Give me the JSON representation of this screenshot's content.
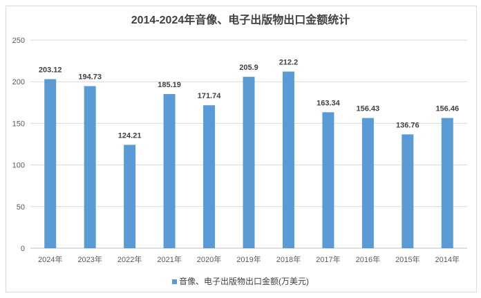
{
  "chart_data": {
    "type": "bar",
    "title": "2014-2024年音像、电子出版物出口金额统计",
    "categories": [
      "2024年",
      "2023年",
      "2022年",
      "2021年",
      "2020年",
      "2019年",
      "2018年",
      "2017年",
      "2016年",
      "2015年",
      "2014年"
    ],
    "series": [
      {
        "name": "音像、电子出版物出口金额(万美元)",
        "values": [
          203.12,
          194.73,
          124.21,
          185.19,
          171.74,
          205.9,
          212.2,
          163.34,
          156.43,
          136.76,
          156.46
        ]
      }
    ],
    "data_labels": [
      "203.12",
      "194.73",
      "124.21",
      "185.19",
      "171.74",
      "205.9",
      "212.2",
      "163.34",
      "156.43",
      "136.76",
      "156.46"
    ],
    "ylim": [
      0,
      250
    ],
    "yticks": [
      0,
      50,
      100,
      150,
      200,
      250
    ],
    "grid": true,
    "legend": "bottom",
    "xlabel": "",
    "ylabel": "",
    "color": "#5b9bd5"
  }
}
